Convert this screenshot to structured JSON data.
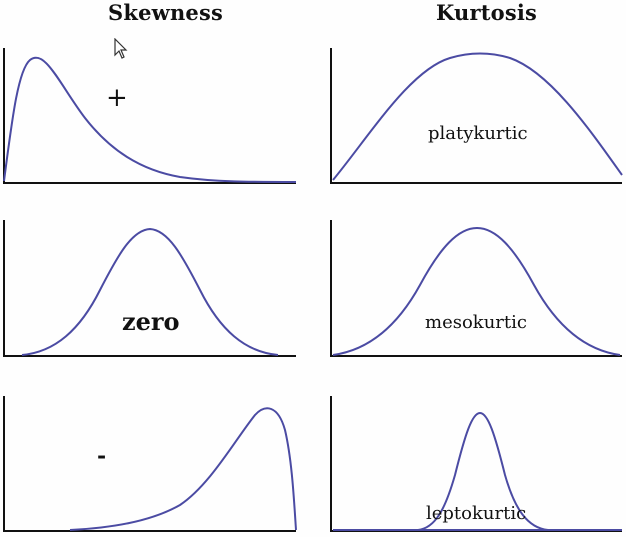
{
  "titles": {
    "skewness": "Skewness",
    "kurtosis": "Kurtosis"
  },
  "panels": {
    "skew_positive": {
      "label": "+"
    },
    "skew_zero": {
      "label": "zero"
    },
    "skew_negative": {
      "label": "-"
    },
    "kurt_platy": {
      "label": "platykurtic"
    },
    "kurt_meso": {
      "label": "mesokurtic"
    },
    "kurt_lepto": {
      "label": "leptokurtic"
    }
  },
  "colors": {
    "curve": "#4b4ba3",
    "axis": "#111111",
    "text": "#111111"
  },
  "icons": {
    "cursor": "arrow-cursor-icon"
  }
}
